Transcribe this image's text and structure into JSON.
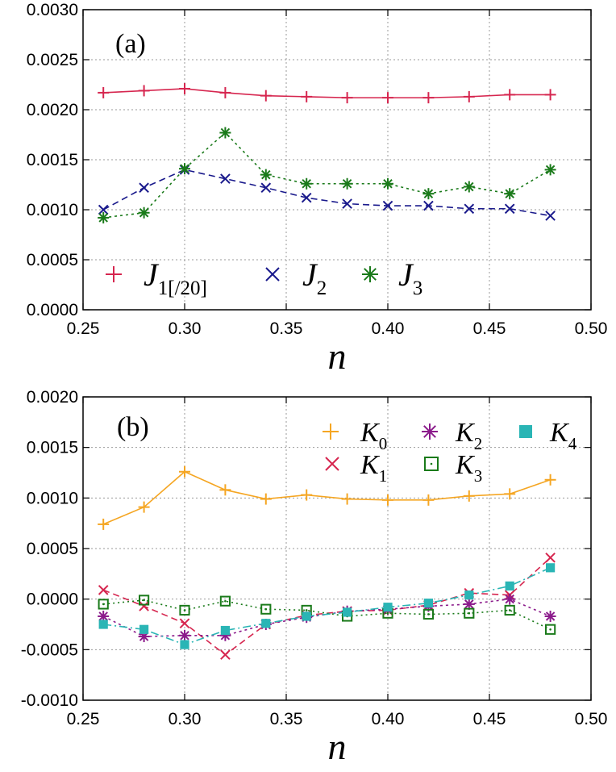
{
  "chart_data": [
    {
      "type": "line",
      "panel_label": "(a)",
      "xlabel": "n",
      "ylabel": "",
      "xlim": [
        0.25,
        0.5
      ],
      "ylim": [
        0.0,
        0.003
      ],
      "x_ticks": [
        "0.25",
        "0.30",
        "0.35",
        "0.40",
        "0.45",
        "0.50"
      ],
      "y_ticks": [
        "0.0000",
        "0.0005",
        "0.0010",
        "0.0015",
        "0.0020",
        "0.0025",
        "0.0030"
      ],
      "grid": true,
      "legend": "bottom",
      "x": [
        0.26,
        0.28,
        0.3,
        0.32,
        0.34,
        0.36,
        0.38,
        0.4,
        0.42,
        0.44,
        0.46,
        0.48
      ],
      "series": [
        {
          "name": "J",
          "sub": "1[/20]",
          "color": "#d6264f",
          "marker": "plus",
          "dash": "",
          "values": [
            0.00217,
            0.00219,
            0.00221,
            0.00217,
            0.00214,
            0.00213,
            0.00212,
            0.00212,
            0.00212,
            0.00213,
            0.00215,
            0.00215
          ]
        },
        {
          "name": "J",
          "sub": "2",
          "color": "#1a1a8c",
          "marker": "cross",
          "dash": "8,5",
          "values": [
            0.001,
            0.00122,
            0.0014,
            0.00131,
            0.00122,
            0.00112,
            0.00106,
            0.00104,
            0.00104,
            0.00101,
            0.00101,
            0.00094
          ]
        },
        {
          "name": "J",
          "sub": "3",
          "color": "#1a7a1a",
          "marker": "star",
          "dash": "3,4",
          "values": [
            0.00092,
            0.00097,
            0.00141,
            0.00177,
            0.00135,
            0.00126,
            0.00126,
            0.00126,
            0.00116,
            0.00123,
            0.00116,
            0.0014
          ]
        }
      ]
    },
    {
      "type": "line",
      "panel_label": "(b)",
      "xlabel": "n",
      "ylabel": "",
      "xlim": [
        0.25,
        0.5
      ],
      "ylim": [
        -0.001,
        0.002
      ],
      "x_ticks": [
        "0.25",
        "0.30",
        "0.35",
        "0.40",
        "0.45",
        "0.50"
      ],
      "y_ticks": [
        "-0.0010",
        "-0.0005",
        "0.0000",
        "0.0005",
        "0.0010",
        "0.0015",
        "0.0020"
      ],
      "grid": true,
      "legend": "top-right",
      "x": [
        0.26,
        0.28,
        0.3,
        0.32,
        0.34,
        0.36,
        0.38,
        0.4,
        0.42,
        0.44,
        0.46,
        0.48
      ],
      "series": [
        {
          "name": "K",
          "sub": "0",
          "color": "#f5a623",
          "marker": "plus",
          "dash": "",
          "values": [
            0.00074,
            0.00091,
            0.00126,
            0.00108,
            0.00099,
            0.00103,
            0.00099,
            0.00098,
            0.00098,
            0.00102,
            0.00104,
            0.00118
          ]
        },
        {
          "name": "K",
          "sub": "1",
          "color": "#d6264f",
          "marker": "cross",
          "dash": "8,5",
          "values": [
            9e-05,
            -7e-05,
            -0.00024,
            -0.00055,
            -0.00025,
            -0.00016,
            -0.00012,
            -0.00011,
            -6e-05,
            6e-05,
            4e-05,
            0.00041
          ]
        },
        {
          "name": "K",
          "sub": "2",
          "color": "#8b1a8b",
          "marker": "star",
          "dash": "3,4",
          "values": [
            -0.00017,
            -0.00037,
            -0.00036,
            -0.00036,
            -0.00025,
            -0.00018,
            -0.00012,
            -0.0001,
            -7e-05,
            -5e-05,
            0.0,
            -0.00017
          ]
        },
        {
          "name": "K",
          "sub": "3",
          "color": "#1a7a1a",
          "marker": "square-open",
          "dash": "2,4",
          "values": [
            -5e-05,
            -1e-05,
            -0.00011,
            -2e-05,
            -0.0001,
            -0.00011,
            -0.00017,
            -0.00014,
            -0.00015,
            -0.00014,
            -0.00011,
            -0.0003
          ]
        },
        {
          "name": "K",
          "sub": "4",
          "color": "#2ab5b5",
          "marker": "square-filled",
          "dash": "10,4,2,4",
          "values": [
            -0.00025,
            -0.0003,
            -0.00045,
            -0.00031,
            -0.00024,
            -0.00017,
            -0.00013,
            -8e-05,
            -4e-05,
            4e-05,
            0.00013,
            0.00031
          ]
        }
      ]
    }
  ]
}
